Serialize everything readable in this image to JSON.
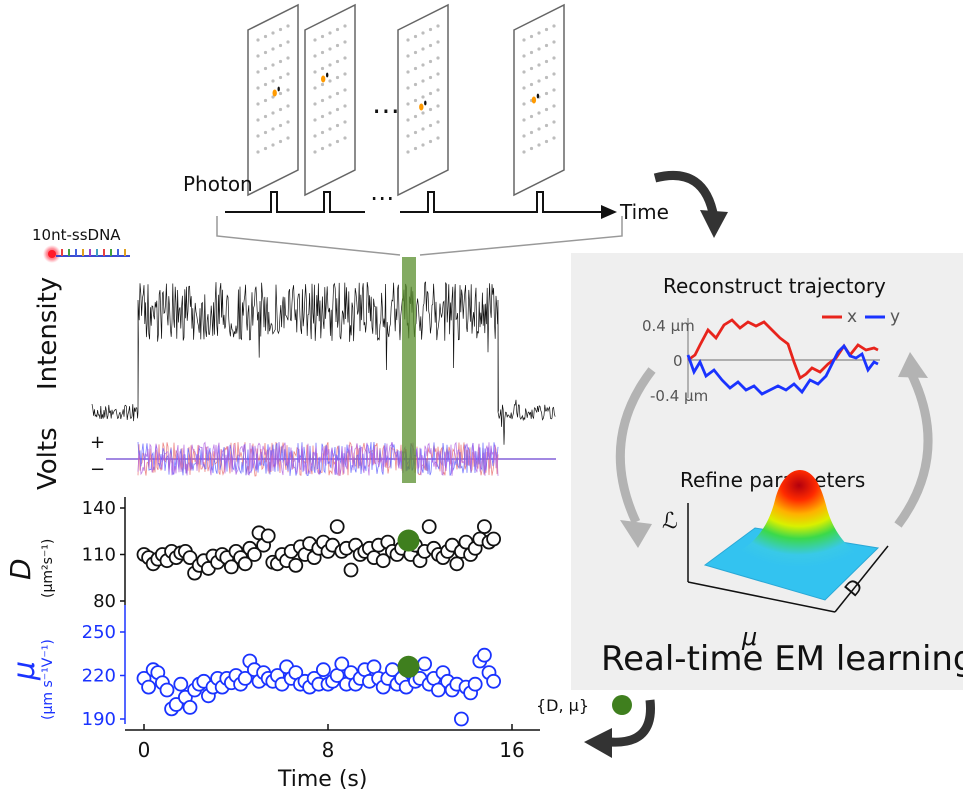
{
  "top": {
    "photon_label": "Photon",
    "time_label": "Time",
    "ellipsis": "⋯"
  },
  "dna_label": "10nt-ssDNA",
  "trace": {
    "intensity_label": "Intensity",
    "volts_label": "Volts",
    "plus": "+",
    "minus": "−"
  },
  "panel": {
    "reconstruct_title": "Reconstruct trajectory",
    "legend_x": "x",
    "legend_y": "y",
    "tick_top": "0.4 μm",
    "tick_zero": "0",
    "tick_bottom": "-0.4 μm",
    "refine_title": "Refine parameters",
    "surface_z": "ℒ",
    "surface_mu": "μ",
    "surface_d": "D",
    "main_title": "Real-time EM learning",
    "output_label": "{D, μ}"
  },
  "chart_data": {
    "type": "scatter",
    "xlabel": "Time (s)",
    "xticks": [
      "0",
      "8",
      "16"
    ],
    "xlim": [
      -0.5,
      17
    ],
    "top_panel": {
      "ylabel": "D",
      "yunit": "(μm²s⁻¹)",
      "yticks": [
        "80",
        "110",
        "140"
      ],
      "ylim": [
        80,
        140
      ],
      "color": "#111111",
      "x": [
        0.0,
        0.2,
        0.4,
        0.6,
        0.8,
        1.0,
        1.2,
        1.4,
        1.6,
        1.8,
        2.0,
        2.2,
        2.4,
        2.6,
        2.8,
        3.0,
        3.2,
        3.4,
        3.6,
        3.8,
        4.0,
        4.2,
        4.4,
        4.6,
        4.8,
        5.0,
        5.2,
        5.4,
        5.6,
        5.8,
        6.0,
        6.2,
        6.4,
        6.6,
        6.8,
        7.0,
        7.2,
        7.4,
        7.6,
        7.8,
        8.0,
        8.2,
        8.4,
        8.6,
        8.8,
        9.0,
        9.2,
        9.4,
        9.6,
        9.8,
        10.0,
        10.2,
        10.4,
        10.6,
        10.8,
        11.0,
        11.2,
        11.4,
        11.6,
        11.8,
        12.0,
        12.2,
        12.4,
        12.6,
        12.8,
        13.0,
        13.2,
        13.4,
        13.6,
        13.8,
        14.0,
        14.2,
        14.4,
        14.6,
        14.8,
        15.0,
        15.2
      ],
      "values": [
        110,
        108,
        104,
        107,
        110,
        106,
        112,
        108,
        111,
        112,
        108,
        98,
        103,
        106,
        101,
        109,
        105,
        110,
        108,
        102,
        112,
        108,
        104,
        114,
        110,
        124,
        116,
        122,
        105,
        104,
        110,
        106,
        112,
        103,
        115,
        110,
        117,
        108,
        114,
        118,
        112,
        116,
        128,
        112,
        114,
        100,
        116,
        110,
        112,
        114,
        108,
        116,
        106,
        118,
        112,
        110,
        114,
        120,
        110,
        116,
        106,
        112,
        128,
        114,
        110,
        108,
        112,
        116,
        104,
        112,
        118,
        110,
        114,
        120,
        128,
        118,
        120
      ],
      "highlight": {
        "x": 11.5,
        "value": 119,
        "color": "#3f7f1e"
      }
    },
    "bottom_panel": {
      "ylabel": "μ",
      "yunit": "(μm s⁻¹V⁻¹)",
      "yticks": [
        "190",
        "220",
        "250"
      ],
      "ylim": [
        185,
        275
      ],
      "color": "#1a33ff",
      "x": [
        0.0,
        0.2,
        0.4,
        0.6,
        0.8,
        1.0,
        1.2,
        1.4,
        1.6,
        1.8,
        2.0,
        2.2,
        2.4,
        2.6,
        2.8,
        3.0,
        3.2,
        3.4,
        3.6,
        3.8,
        4.0,
        4.2,
        4.4,
        4.6,
        4.8,
        5.0,
        5.2,
        5.4,
        5.6,
        5.8,
        6.0,
        6.2,
        6.4,
        6.6,
        6.8,
        7.0,
        7.2,
        7.4,
        7.6,
        7.8,
        8.0,
        8.2,
        8.4,
        8.6,
        8.8,
        9.0,
        9.2,
        9.4,
        9.6,
        9.8,
        10.0,
        10.2,
        10.4,
        10.6,
        10.8,
        11.0,
        11.2,
        11.4,
        11.6,
        11.8,
        12.0,
        12.2,
        12.4,
        12.6,
        12.8,
        13.0,
        13.2,
        13.4,
        13.6,
        13.8,
        14.0,
        14.2,
        14.4,
        14.6,
        14.8,
        15.0,
        15.2
      ],
      "values": [
        218,
        212,
        224,
        222,
        215,
        210,
        197,
        200,
        214,
        205,
        198,
        210,
        214,
        216,
        206,
        212,
        218,
        212,
        218,
        215,
        220,
        214,
        218,
        230,
        224,
        216,
        222,
        218,
        216,
        220,
        214,
        226,
        218,
        222,
        214,
        216,
        212,
        218,
        214,
        224,
        214,
        216,
        220,
        228,
        214,
        222,
        214,
        218,
        224,
        216,
        226,
        218,
        212,
        218,
        224,
        214,
        218,
        212,
        222,
        216,
        218,
        228,
        214,
        218,
        210,
        222,
        216,
        210,
        214,
        190,
        212,
        208,
        214,
        230,
        234,
        222,
        216
      ],
      "highlight": {
        "x": 11.5,
        "value": 226,
        "color": "#3f7f1e"
      }
    }
  }
}
